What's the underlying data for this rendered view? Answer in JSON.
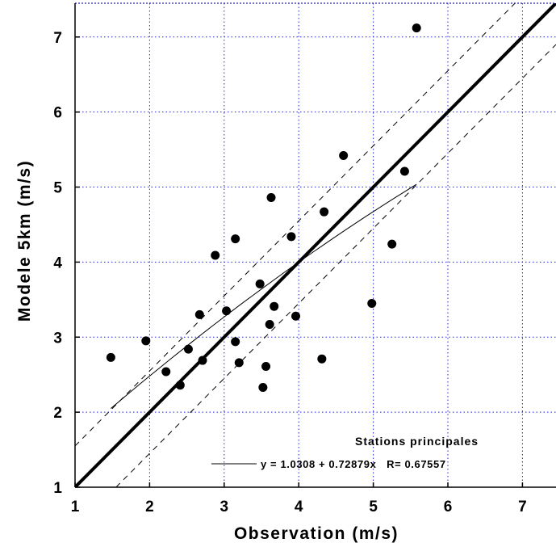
{
  "chart_data": {
    "type": "scatter",
    "title": "",
    "xlabel": "Observation (m/s)",
    "ylabel": "Modele 5km (m/s)",
    "xlim": [
      1,
      7.45
    ],
    "ylim": [
      1,
      7.45
    ],
    "x_ticks": [
      "1",
      "2",
      "3",
      "4",
      "5",
      "6",
      "7"
    ],
    "y_ticks": [
      "1",
      "2",
      "3",
      "4",
      "5",
      "6",
      "7"
    ],
    "grid": true,
    "grid_style": "dotted blue",
    "legend": {
      "title": "Stations principales",
      "equation": "y = 1.0308 + 0.72879x   R= 0.67557",
      "placement": "bottom-right"
    },
    "series": [
      {
        "kind": "points",
        "points": [
          [
            1.48,
            2.73
          ],
          [
            1.95,
            2.95
          ],
          [
            2.22,
            2.54
          ],
          [
            2.41,
            2.36
          ],
          [
            2.52,
            2.84
          ],
          [
            2.67,
            3.3
          ],
          [
            2.71,
            2.69
          ],
          [
            2.88,
            4.09
          ],
          [
            3.03,
            3.35
          ],
          [
            3.15,
            4.31
          ],
          [
            3.15,
            2.94
          ],
          [
            3.2,
            2.66
          ],
          [
            3.48,
            3.71
          ],
          [
            3.52,
            2.33
          ],
          [
            3.56,
            2.61
          ],
          [
            3.61,
            3.17
          ],
          [
            3.63,
            4.86
          ],
          [
            3.67,
            3.41
          ],
          [
            3.9,
            4.34
          ],
          [
            3.96,
            3.28
          ],
          [
            4.31,
            2.71
          ],
          [
            4.34,
            4.67
          ],
          [
            4.6,
            5.42
          ],
          [
            4.98,
            3.45
          ],
          [
            5.25,
            4.24
          ],
          [
            5.42,
            5.21
          ],
          [
            5.58,
            7.12
          ]
        ]
      },
      {
        "kind": "identity-line",
        "from": [
          1,
          1
        ],
        "to": [
          7.45,
          7.45
        ]
      },
      {
        "kind": "confidence-band",
        "offset": 0.55
      },
      {
        "kind": "fit-curve",
        "intercept": 1.0308,
        "slope": 0.72879,
        "x_range": [
          1.48,
          5.58
        ]
      }
    ]
  }
}
